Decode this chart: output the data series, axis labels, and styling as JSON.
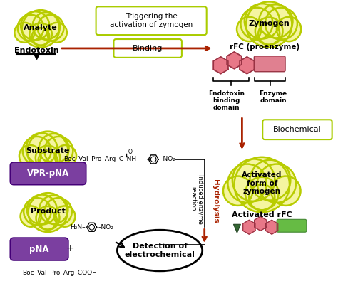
{
  "cloud_edge": "#b8cc00",
  "cloud_fill": "#f5f5a0",
  "purple": "#7B3FA0",
  "dark_purple": "#440077",
  "red_arrow": "#aa2200",
  "pink_hex": "#e87888",
  "green_ribbon": "#55bb44",
  "dark_green": "#336633",
  "box_edge_yellow": "#aacc00",
  "analyte_label": "Analyte",
  "endotoxin_label": "Endotoxin",
  "trigger_label": "Triggering the\nactivation of zymogen",
  "binding_label": "Binding",
  "zymogen_label": "Zymogen",
  "rfc_label": "rFC (proenzyme)",
  "endotoxin_binding_domain": "Endotoxin\nbinding\ndomain",
  "enzyme_domain": "Enzyme\ndomain",
  "biochemical_label": "Biochemical",
  "activated_form_label": "Activated\nform of\nzymogen",
  "activated_rfc_label": "Activated rFC",
  "substrate_label": "Substrate",
  "vpr_pna_label": "VPR-pNA",
  "product_label": "Product",
  "pna_label": "pNA",
  "detection_label": "Detection of\nelectrochemical",
  "hydrolysis_label": "Hydrolysis",
  "induced_label": "Induced enzyme\nreaction"
}
